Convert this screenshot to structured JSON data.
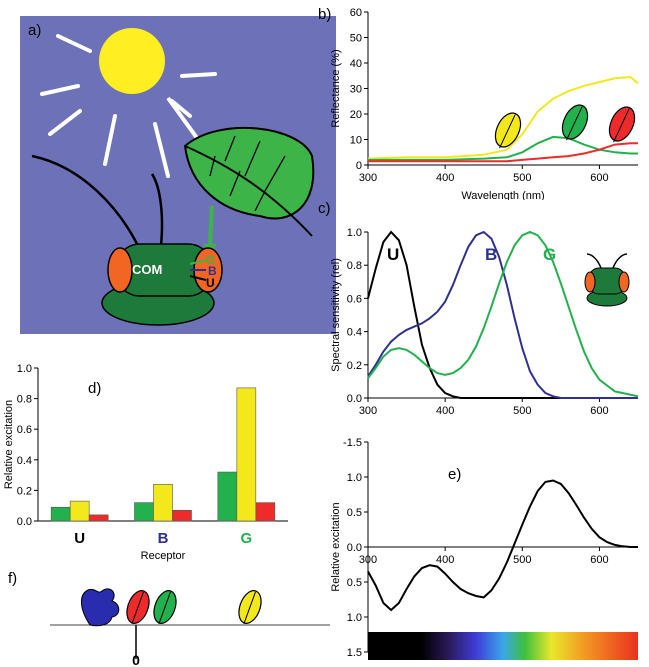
{
  "panel_labels": {
    "a": "a)",
    "b": "b)",
    "c": "c)",
    "d": "d)",
    "e": "e)",
    "f": "f)"
  },
  "illustration": {
    "bg_color": "#6d72b8",
    "sun_color": "#ffee22",
    "leaf_color": "#3cb447",
    "bee_body_color": "#1d7a3a",
    "bee_eye_color": "#f26522",
    "com_label": "COM",
    "receptor_letters": {
      "g": "G",
      "b": "B",
      "u": "U"
    }
  },
  "chart_data": [
    {
      "id": "b",
      "type": "line",
      "xlabel": "Wavelength (nm)",
      "ylabel": "Reflectance (%)",
      "xlim": [
        300,
        650
      ],
      "ylim": [
        0,
        60
      ],
      "xticks": [
        "300",
        "400",
        "500",
        "600"
      ],
      "yticks": [
        "0",
        "10",
        "20",
        "30",
        "40",
        "50",
        "60"
      ],
      "grid": false,
      "x": [
        300,
        350,
        400,
        450,
        480,
        500,
        520,
        540,
        560,
        580,
        600,
        620,
        640,
        650
      ],
      "series": [
        {
          "color": "#f2e81c",
          "values": [
            2.5,
            3,
            3,
            4,
            6,
            12,
            21,
            26,
            29,
            31,
            32.5,
            34,
            34.5,
            32
          ]
        },
        {
          "color": "#22b14c",
          "values": [
            2,
            2,
            2,
            2.5,
            3,
            5,
            8.5,
            11,
            10.5,
            8,
            6,
            5,
            4.5,
            4.5
          ]
        },
        {
          "color": "#ed2b2b",
          "values": [
            1.5,
            1.5,
            1.5,
            1.5,
            1.5,
            2,
            2.5,
            3,
            3.5,
            4.5,
            6,
            8,
            8.5,
            8.5
          ]
        }
      ]
    },
    {
      "id": "c",
      "type": "line",
      "xlabel": "",
      "ylabel": "Spectral sensitivity (rel)",
      "xlim": [
        300,
        650
      ],
      "ylim": [
        0,
        1.0
      ],
      "xticks": [
        "300",
        "400",
        "500",
        "600"
      ],
      "yticks": [
        "0.0",
        "0.2",
        "0.4",
        "0.6",
        "0.8",
        "1.0"
      ],
      "grid": false,
      "x": [
        300,
        310,
        320,
        330,
        340,
        350,
        360,
        370,
        380,
        390,
        400,
        410,
        420,
        430,
        440,
        450,
        460,
        470,
        480,
        490,
        500,
        510,
        520,
        530,
        540,
        550,
        560,
        570,
        580,
        590,
        600,
        620,
        650
      ],
      "series": [
        {
          "name": "U",
          "color": "#000000",
          "values": [
            0.6,
            0.78,
            0.94,
            1.0,
            0.95,
            0.8,
            0.55,
            0.32,
            0.18,
            0.08,
            0.03,
            0.01,
            0,
            0,
            0,
            0,
            0,
            0,
            0,
            0,
            0,
            0,
            0,
            0,
            0,
            0,
            0,
            0,
            0,
            0,
            0,
            0,
            0
          ]
        },
        {
          "name": "B",
          "color": "#2e3192",
          "values": [
            0.13,
            0.2,
            0.28,
            0.34,
            0.38,
            0.41,
            0.43,
            0.45,
            0.48,
            0.52,
            0.58,
            0.68,
            0.8,
            0.91,
            0.98,
            1.0,
            0.96,
            0.85,
            0.68,
            0.48,
            0.3,
            0.16,
            0.08,
            0.03,
            0.01,
            0,
            0,
            0,
            0,
            0,
            0,
            0,
            0
          ]
        },
        {
          "name": "G",
          "color": "#22b14c",
          "values": [
            0.12,
            0.18,
            0.25,
            0.29,
            0.3,
            0.29,
            0.26,
            0.22,
            0.18,
            0.15,
            0.14,
            0.15,
            0.18,
            0.23,
            0.31,
            0.42,
            0.55,
            0.69,
            0.82,
            0.92,
            0.98,
            1.0,
            0.98,
            0.92,
            0.82,
            0.69,
            0.55,
            0.41,
            0.28,
            0.18,
            0.11,
            0.04,
            0.01
          ]
        }
      ]
    },
    {
      "id": "d",
      "type": "bar",
      "xlabel": "Receptor",
      "ylabel": "Relative excitation",
      "ylim": [
        0,
        1.0
      ],
      "yticks": [
        "0.0",
        "0.2",
        "0.4",
        "0.6",
        "0.8",
        "1.0"
      ],
      "categories": [
        "U",
        "B",
        "G"
      ],
      "category_colors": [
        "#000000",
        "#2e3192",
        "#22b14c"
      ],
      "series": [
        {
          "color": "#22b14c",
          "values": [
            0.09,
            0.12,
            0.32
          ]
        },
        {
          "color": "#f2e81c",
          "values": [
            0.13,
            0.24,
            0.87
          ]
        },
        {
          "color": "#ed2b2b",
          "values": [
            0.04,
            0.07,
            0.12
          ]
        }
      ]
    },
    {
      "id": "e",
      "type": "line",
      "xlabel": "",
      "ylabel": "Relative excitation",
      "xlim": [
        300,
        650
      ],
      "ylim": [
        -1.5,
        1.5
      ],
      "xticks": [
        "300",
        "400",
        "500",
        "600"
      ],
      "yticks": [
        "1.5",
        "1.0",
        "0.5",
        "0.0",
        "0.5",
        "1.0",
        "-1.5"
      ],
      "grid": false,
      "x": [
        300,
        310,
        320,
        330,
        340,
        350,
        360,
        370,
        380,
        390,
        400,
        410,
        420,
        430,
        440,
        450,
        460,
        470,
        480,
        490,
        500,
        510,
        520,
        530,
        540,
        550,
        560,
        570,
        580,
        590,
        600,
        610,
        620,
        630,
        640,
        650
      ],
      "series": [
        {
          "color": "#000000",
          "values": [
            -0.35,
            -0.55,
            -0.8,
            -0.9,
            -0.8,
            -0.6,
            -0.42,
            -0.3,
            -0.26,
            -0.28,
            -0.38,
            -0.5,
            -0.6,
            -0.66,
            -0.7,
            -0.72,
            -0.62,
            -0.45,
            -0.22,
            0.05,
            0.32,
            0.58,
            0.8,
            0.93,
            0.95,
            0.9,
            0.77,
            0.6,
            0.42,
            0.26,
            0.14,
            0.07,
            0.03,
            0.01,
            0.0,
            0.0
          ]
        }
      ]
    }
  ],
  "panel_f": {
    "tick_label": "0"
  }
}
